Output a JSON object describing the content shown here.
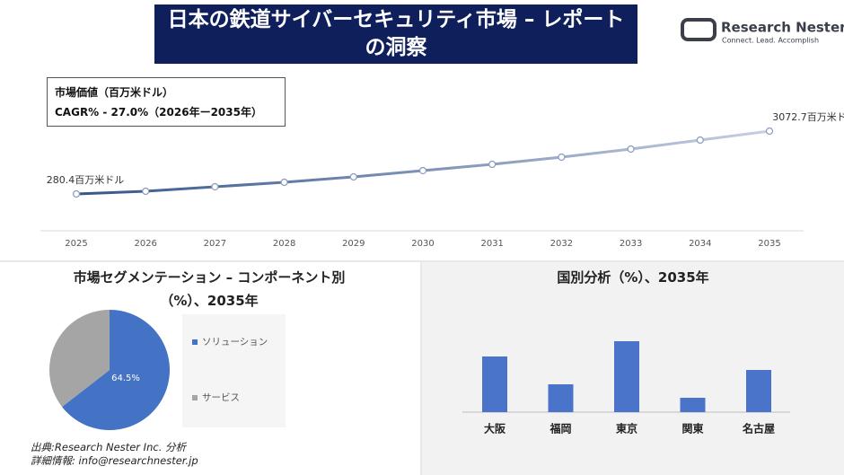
{
  "header": {
    "title": "日本の鉄道サイバーセキュリティ市場 – レポートの洞察",
    "logo": {
      "name": "Research Nester",
      "tagline": "Connect. Lead. Accomplish"
    }
  },
  "chart_data": [
    {
      "type": "line",
      "info": [
        "市場価値（百万米ドル）",
        "CAGR% - 27.0%（2026年ー2035年）"
      ],
      "x": [
        2025,
        2026,
        2027,
        2028,
        2029,
        2030,
        2031,
        2032,
        2033,
        2034,
        2035
      ],
      "values": [
        280.4,
        400,
        599,
        799,
        1038,
        1317,
        1597,
        1916,
        2275,
        2674,
        3072.7
      ],
      "value_labels": [
        "280.4百万米ドル",
        null,
        null,
        null,
        null,
        null,
        null,
        null,
        null,
        null,
        "3072.7百万米ドル"
      ],
      "color": "#35568a"
    },
    {
      "type": "pie",
      "title": "市場セグメンテーション – コンポーネント別（%）、2035年",
      "categories": [
        "ソリューション",
        "サービス"
      ],
      "values": [
        64.5,
        35.5
      ],
      "value_labels": [
        "64.5%",
        null
      ],
      "colors": [
        "#4472c4",
        "#a5a5a5"
      ]
    },
    {
      "type": "bar",
      "title": "国別分析（%）、2035年",
      "categories": [
        "大阪",
        "福岡",
        "東京",
        "関東",
        "名古屋"
      ],
      "values": [
        62,
        31,
        79,
        16,
        47
      ],
      "color": "#4a74c9"
    }
  ],
  "footer": {
    "source": "出典:Research Nester Inc. 分析",
    "contact": "詳細情報: info@researchnester.jp"
  }
}
